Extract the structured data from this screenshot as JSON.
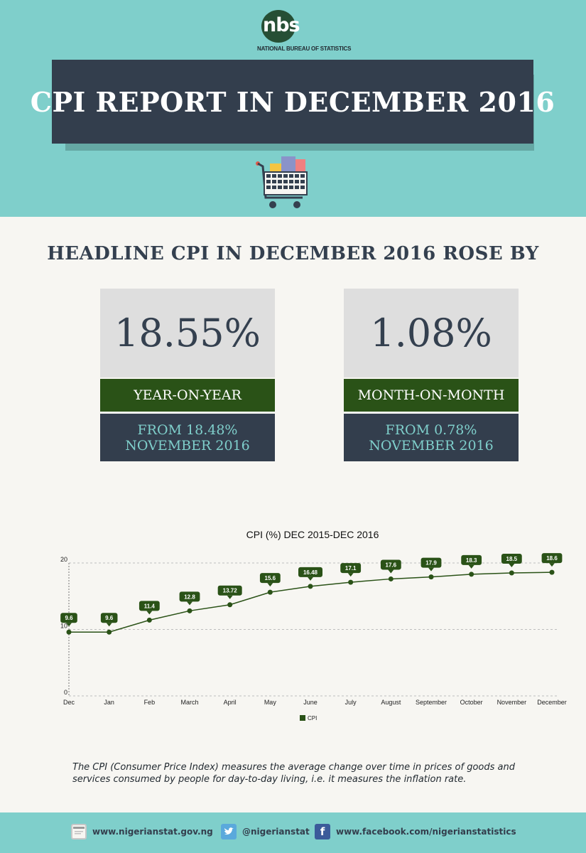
{
  "header": {
    "logo_text": "nbs",
    "agency": "NATIONAL BUREAU OF STATISTICS",
    "title": "CPI REPORT IN DECEMBER 2016",
    "cart_icon": "shopping-cart-icon"
  },
  "headline": "HEADLINE CPI IN DECEMBER 2016 ROSE BY",
  "stats": [
    {
      "value": "18.55%",
      "label": "YEAR-ON-YEAR",
      "from_line1": "FROM 18.48%",
      "from_line2": "NOVEMBER 2016"
    },
    {
      "value": "1.08%",
      "label": "MONTH-ON-MONTH",
      "from_line1": "FROM 0.78%",
      "from_line2": "NOVEMBER 2016"
    }
  ],
  "chart_data": {
    "type": "line",
    "title": "CPI (%) DEC 2015-DEC 2016",
    "categories": [
      "Dec",
      "Jan",
      "Feb",
      "March",
      "April",
      "May",
      "June",
      "July",
      "August",
      "September",
      "October",
      "November",
      "December"
    ],
    "series": [
      {
        "name": "CPI",
        "values": [
          9.6,
          9.6,
          11.4,
          12.8,
          13.72,
          15.6,
          16.48,
          17.1,
          17.6,
          17.9,
          18.3,
          18.5,
          18.6
        ],
        "labels": [
          "9.6",
          "9.6",
          "11.4",
          "12.8",
          "13.72",
          "15.6",
          "16.48",
          "17.1",
          "17.6",
          "17.9",
          "18.3",
          "18.5",
          "18.6"
        ],
        "color": "#2a5217"
      }
    ],
    "ylim": [
      0,
      20
    ],
    "yticks": [
      "0",
      "10",
      "20"
    ],
    "grid": "dashed horizontal",
    "legend": "bottom-center"
  },
  "note": "The CPI (Consumer Price Index) measures the average change over time in prices of goods and services consumed by people for day-to-day living, i.e. it measures the inflation rate.",
  "footer": {
    "website": "www.nigerianstat.gov.ng",
    "twitter": "@nigerianstat",
    "facebook": "www.facebook.com/nigerianstatistics"
  },
  "colors": {
    "teal": "#7fcfcb",
    "navy": "#333e4d",
    "green": "#2a5217",
    "background": "#f7f6f2"
  }
}
